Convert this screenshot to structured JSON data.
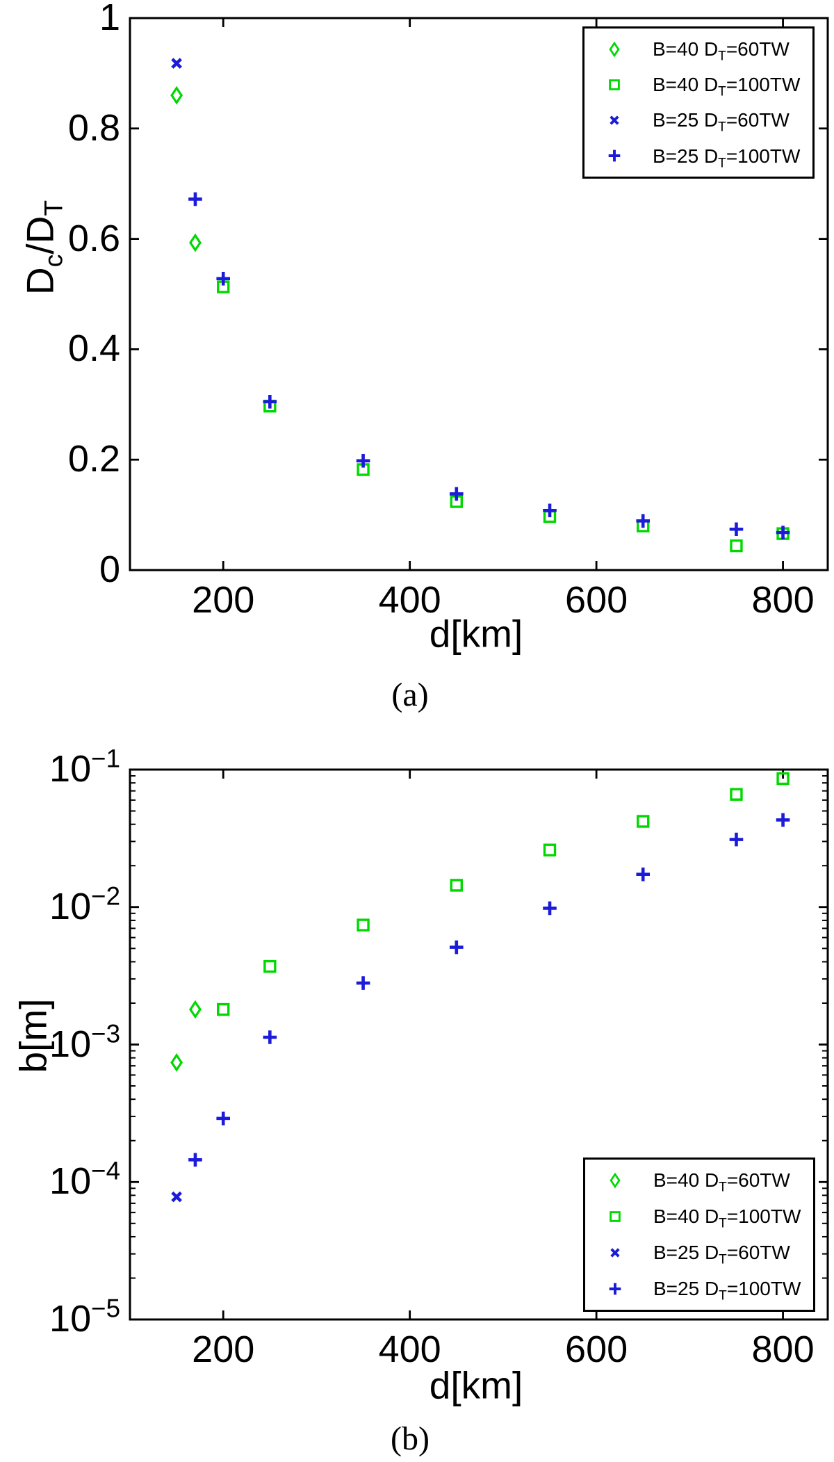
{
  "captions": {
    "a": "(a)",
    "b": "(b)"
  },
  "colors": {
    "green": "#00d800",
    "blue": "#1b1bd8",
    "axis": "#000000",
    "background": "#ffffff"
  },
  "legend": {
    "entries": [
      {
        "label": "B=40 D_T=60TW",
        "marker": "diamond",
        "color": "#00d800"
      },
      {
        "label": "B=40 D_T=100TW",
        "marker": "square",
        "color": "#00d800"
      },
      {
        "label": "B=25 D_T=60TW",
        "marker": "x",
        "color": "#1b1bd8"
      },
      {
        "label": "B=25 D_T=100TW",
        "marker": "plus",
        "color": "#1b1bd8"
      }
    ]
  },
  "chart_data": [
    {
      "id": "a",
      "type": "scatter",
      "title": "",
      "xlabel": "d[km]",
      "ylabel": "D_c/D_T",
      "xlim": [
        100,
        848
      ],
      "ylim": [
        0,
        1
      ],
      "yscale": "linear",
      "xticks": [
        200,
        400,
        600,
        800
      ],
      "yticks": [
        0,
        0.2,
        0.4,
        0.6,
        0.8,
        1
      ],
      "grid": false,
      "legend_position": "top-right",
      "series": [
        {
          "name": "B=40 D_T=60TW",
          "marker": "diamond",
          "color": "#00d800",
          "points": [
            [
              150,
              0.86
            ],
            [
              170,
              0.593
            ]
          ]
        },
        {
          "name": "B=40 D_T=100TW",
          "marker": "square",
          "color": "#00d800",
          "points": [
            [
              200,
              0.513
            ],
            [
              250,
              0.297
            ],
            [
              350,
              0.182
            ],
            [
              450,
              0.124
            ],
            [
              550,
              0.097
            ],
            [
              650,
              0.08
            ],
            [
              750,
              0.044
            ],
            [
              800,
              0.066
            ]
          ]
        },
        {
          "name": "B=25 D_T=60TW",
          "marker": "x",
          "color": "#1b1bd8",
          "points": [
            [
              150,
              0.918
            ]
          ]
        },
        {
          "name": "B=25 D_T=100TW",
          "marker": "plus",
          "color": "#1b1bd8",
          "points": [
            [
              170,
              0.672
            ],
            [
              200,
              0.528
            ],
            [
              250,
              0.305
            ],
            [
              350,
              0.198
            ],
            [
              450,
              0.138
            ],
            [
              550,
              0.108
            ],
            [
              650,
              0.089
            ],
            [
              750,
              0.074
            ],
            [
              800,
              0.068
            ]
          ]
        }
      ]
    },
    {
      "id": "b",
      "type": "scatter",
      "title": "",
      "xlabel": "d[km]",
      "ylabel": "b[m]",
      "xlim": [
        100,
        848
      ],
      "ylim": [
        1e-05,
        0.1
      ],
      "yscale": "log",
      "xticks": [
        200,
        400,
        600,
        800
      ],
      "yticks": [
        0.1,
        0.01,
        0.001,
        0.0001,
        1e-05
      ],
      "grid": false,
      "legend_position": "bottom-right",
      "series": [
        {
          "name": "B=40 D_T=60TW",
          "marker": "diamond",
          "color": "#00d800",
          "points": [
            [
              150,
              0.00074
            ],
            [
              170,
              0.0018
            ]
          ]
        },
        {
          "name": "B=40 D_T=100TW",
          "marker": "square",
          "color": "#00d800",
          "points": [
            [
              200,
              0.0018
            ],
            [
              250,
              0.0037
            ],
            [
              350,
              0.0074
            ],
            [
              450,
              0.0144
            ],
            [
              550,
              0.026
            ],
            [
              650,
              0.042
            ],
            [
              750,
              0.066
            ],
            [
              800,
              0.086
            ]
          ]
        },
        {
          "name": "B=25 D_T=60TW",
          "marker": "x",
          "color": "#1b1bd8",
          "points": [
            [
              150,
              7.8e-05
            ]
          ]
        },
        {
          "name": "B=25 D_T=100TW",
          "marker": "plus",
          "color": "#1b1bd8",
          "points": [
            [
              170,
              0.000145
            ],
            [
              200,
              0.00029
            ],
            [
              250,
              0.00113
            ],
            [
              350,
              0.0028
            ],
            [
              450,
              0.0051
            ],
            [
              550,
              0.0098
            ],
            [
              650,
              0.0173
            ],
            [
              750,
              0.031
            ],
            [
              800,
              0.043
            ]
          ]
        }
      ]
    }
  ]
}
